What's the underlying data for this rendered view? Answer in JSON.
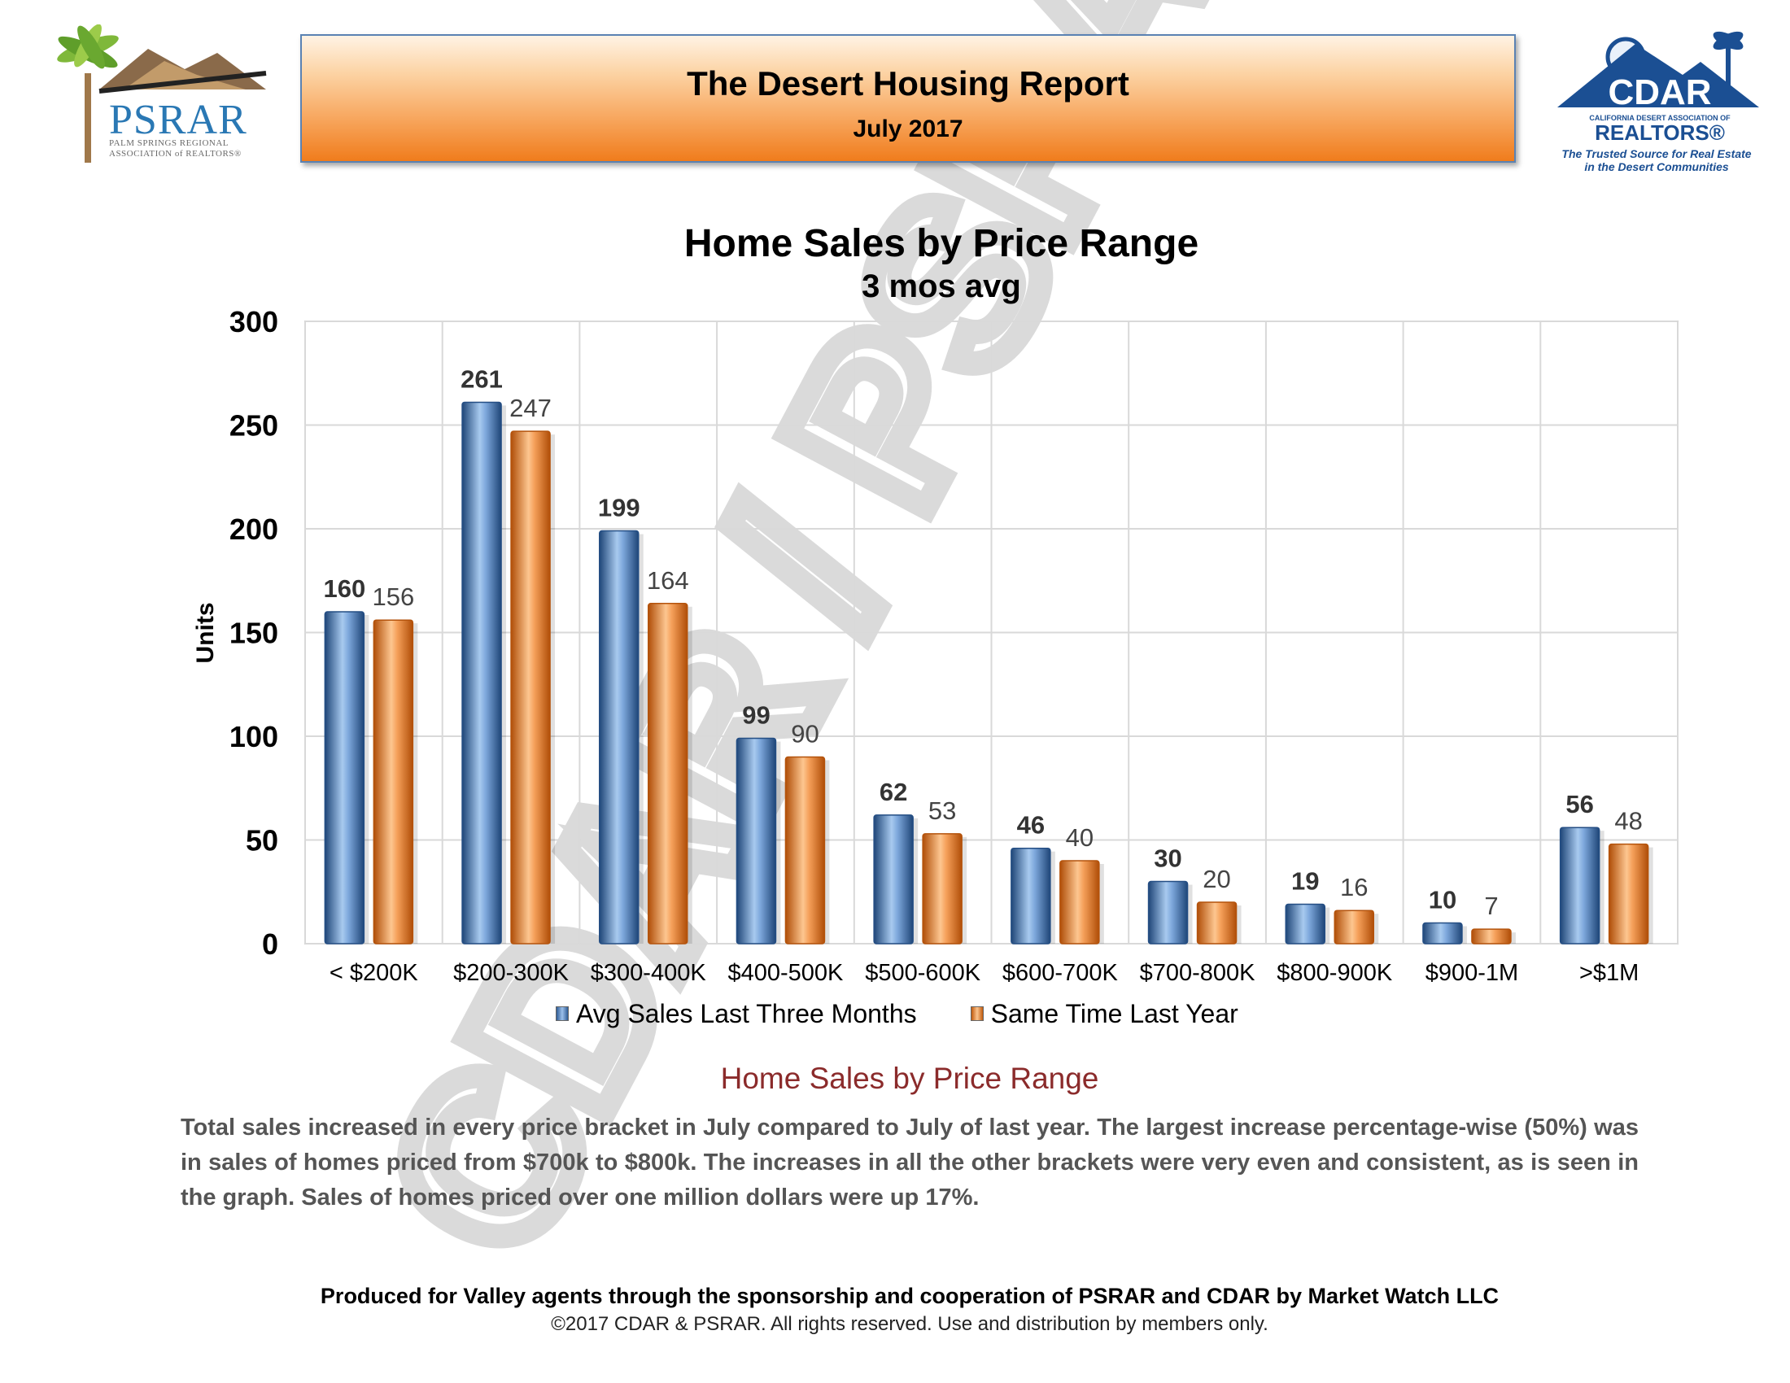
{
  "header": {
    "title": "The Desert Housing Report",
    "date": "July 2017"
  },
  "logos": {
    "psrar_name": "PSRAR",
    "psrar_line1": "PALM SPRINGS REGIONAL",
    "psrar_line2": "ASSOCIATION of REALTORS®",
    "cdar_name": "CDAR",
    "cdar_small": "CALIFORNIA DESERT ASSOCIATION OF",
    "cdar_realtors": "REALTORS®",
    "cdar_tagline_1": "The Trusted Source for Real Estate",
    "cdar_tagline_2": "in the Desert Communities"
  },
  "watermark": "CDAR / PSRAR",
  "colors": {
    "series_avg": "#3b6aa8",
    "series_last_year": "#e8762a",
    "analysis_title": "#8b2b2b",
    "banner_border": "#5a82b3"
  },
  "chart_data": {
    "type": "bar",
    "title": "Home Sales by Price Range",
    "subtitle": "3 mos avg",
    "xlabel": "",
    "ylabel": "Units",
    "ylim": [
      0,
      300
    ],
    "yticks": [
      0,
      50,
      100,
      150,
      200,
      250,
      300
    ],
    "grid": true,
    "legend_position": "bottom",
    "categories": [
      "< $200K",
      "$200-300K",
      "$300-400K",
      "$400-500K",
      "$500-600K",
      "$600-700K",
      "$700-800K",
      "$800-900K",
      "$900-1M",
      ">$1M"
    ],
    "series": [
      {
        "name": "Avg Sales Last Three Months",
        "values": [
          160,
          261,
          199,
          99,
          62,
          46,
          30,
          19,
          10,
          56
        ]
      },
      {
        "name": "Same Time Last Year",
        "values": [
          156,
          247,
          164,
          90,
          53,
          40,
          20,
          16,
          7,
          48
        ]
      }
    ]
  },
  "analysis": {
    "title": "Home Sales by Price Range",
    "text": "Total sales increased in every price bracket in July compared to July of last year. The largest increase percentage-wise (50%) was in sales of homes priced from $700k to $800k. The increases in all the other brackets were very even and consistent, as is seen in the graph. Sales of homes priced over one million dollars were up 17%."
  },
  "footer": {
    "credit": "Produced for Valley agents through the sponsorship and cooperation of PSRAR and CDAR by Market Watch LLC",
    "copyright": "©2017 CDAR & PSRAR.  All rights reserved.  Use and distribution by members only."
  }
}
